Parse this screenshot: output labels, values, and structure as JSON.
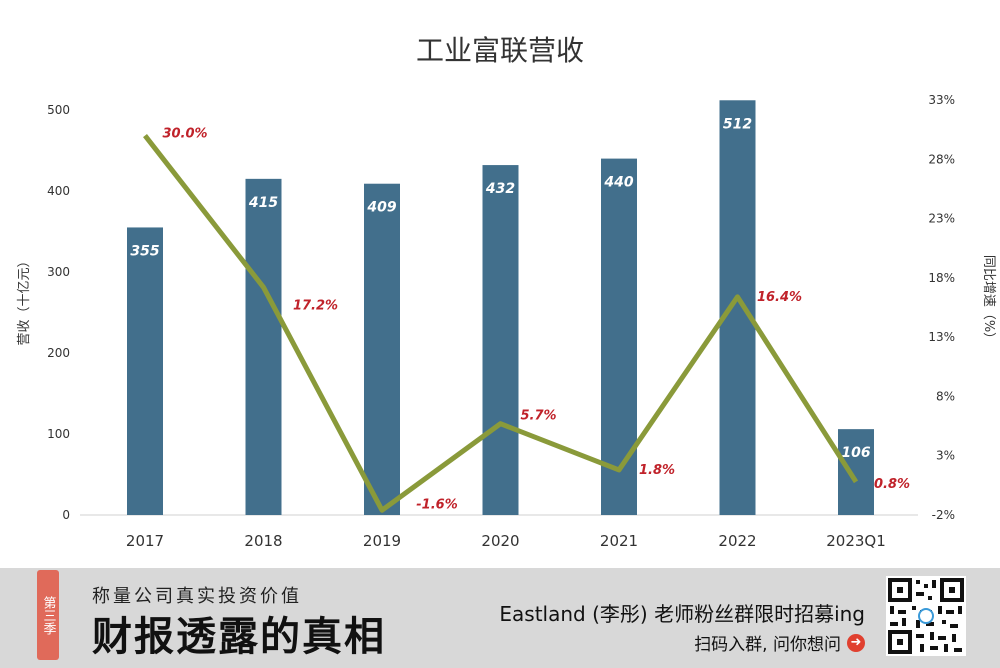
{
  "chart_data": {
    "type": "bar+line",
    "title": "工业富联营收",
    "categories": [
      "2017",
      "2018",
      "2019",
      "2020",
      "2021",
      "2022",
      "2023Q1"
    ],
    "series": [
      {
        "name": "营收",
        "type": "bar",
        "values": [
          355,
          415,
          409,
          432,
          440,
          512,
          106
        ],
        "labels": [
          "355",
          "415",
          "409",
          "432",
          "440",
          "512",
          "106"
        ]
      },
      {
        "name": "同比增速",
        "type": "line",
        "values": [
          30.0,
          17.2,
          -1.6,
          5.7,
          1.8,
          16.4,
          0.8
        ],
        "labels": [
          "30.0%",
          "17.2%",
          "-1.6%",
          "5.7%",
          "1.8%",
          "16.4%",
          "0.8%"
        ]
      }
    ],
    "ylabel": "营收（十亿元）",
    "ylabel_right": "同比增速（%）",
    "ylim": [
      0,
      500
    ],
    "yticks": [
      "0",
      "100",
      "200",
      "300",
      "400",
      "500"
    ],
    "ylim_right": [
      -2,
      33
    ],
    "yticks_right": [
      "-2%",
      "3%",
      "8%",
      "13%",
      "18%",
      "23%",
      "28%",
      "33%"
    ],
    "colors": {
      "bar": "#426f8c",
      "line": "#8a9a3a",
      "label_line": "#c0222a",
      "label_bar": "#ffffff"
    }
  },
  "banner": {
    "badge": "第三季",
    "slogan": "称量公司真实投资价值",
    "brand": "财报透露的真相",
    "recruit": "Eastland (李彤) 老师粉丝群限时招募ing",
    "scan": "扫码入群, 问你想问"
  }
}
